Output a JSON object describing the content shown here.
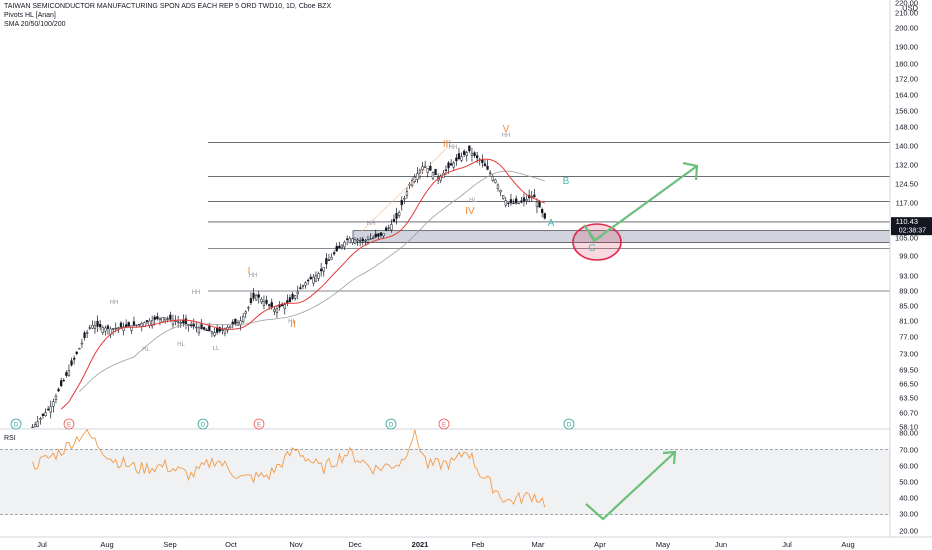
{
  "header": {
    "title": "TAIWAN SEMICONDUCTOR MANUFACTURING SPON ADS EACH REP 5 ORD TWD10, 1D, Cboe BZX",
    "indicator1": "Pivots HL [Anan]",
    "indicator2": "SMA 20/50/100/200"
  },
  "rsi_label": "RSI",
  "price_axis": {
    "currency": "USD",
    "ticks": [
      "220.00",
      "210.00",
      "200.00",
      "190.00",
      "180.00",
      "172.00",
      "164.00",
      "156.00",
      "148.00",
      "140.00",
      "132.00",
      "124.50",
      "117.00",
      "105.00",
      "99.00",
      "93.00",
      "89.00",
      "85.00",
      "81.00",
      "77.00",
      "73.00",
      "69.50",
      "66.50",
      "63.50",
      "60.70",
      "58.10"
    ],
    "last_price": "110.43",
    "countdown": "02:38:37"
  },
  "rsi_axis": {
    "ticks": [
      "80.00",
      "70.00",
      "60.00",
      "50.00",
      "40.00",
      "30.00",
      "20.00"
    ]
  },
  "time_axis": {
    "labels": [
      "Jul",
      "Aug",
      "Sep",
      "Oct",
      "Nov",
      "Dec",
      "2021",
      "Feb",
      "Mar",
      "Apr",
      "May",
      "Jun",
      "Jul",
      "Aug"
    ]
  },
  "annotations": {
    "waves": [
      "I",
      "II",
      "III",
      "IV",
      "V",
      "A",
      "B",
      "C"
    ],
    "pivots": [
      "HH",
      "HL",
      "HL",
      "HH",
      "LL",
      "HH",
      "HL",
      "HH",
      "HH",
      "HL",
      "HH"
    ],
    "events": [
      "D",
      "E",
      "D",
      "E",
      "D",
      "E",
      "D"
    ]
  },
  "colors": {
    "sma_fast": "#e53935",
    "sma_slow": "#9e9e9e",
    "candle": "#131722",
    "rsi": "#f29b4a",
    "arrow": "#6cbf7a",
    "circle": "#e0284f",
    "wave": "#f08a3c",
    "abc": "#4db6ac",
    "dividend": "#26a69a",
    "earnings": "#ef5350"
  },
  "chart_data": {
    "type": "candlestick",
    "title": "TAIWAN SEMICONDUCTOR MANUFACTURING SPON ADS EACH REP 5 ORD TWD10, 1D, Cboe BZX",
    "ylabel": "USD",
    "ylim": [
      58.1,
      220
    ],
    "x_labels": [
      "Jul",
      "Aug",
      "Sep",
      "Oct",
      "Nov",
      "Dec",
      "2021",
      "Feb",
      "Mar",
      "Apr",
      "May",
      "Jun",
      "Jul",
      "Aug"
    ],
    "close_path": [
      [
        "2020-06-26",
        58
      ],
      [
        "2020-07-06",
        62
      ],
      [
        "2020-07-16",
        70
      ],
      [
        "2020-07-27",
        80
      ],
      [
        "2020-08-06",
        79
      ],
      [
        "2020-08-20",
        80
      ],
      [
        "2020-09-03",
        82
      ],
      [
        "2020-09-17",
        80
      ],
      [
        "2020-10-01",
        78
      ],
      [
        "2020-10-14",
        81
      ],
      [
        "2020-10-22",
        88
      ],
      [
        "2020-11-01",
        84
      ],
      [
        "2020-11-09",
        86
      ],
      [
        "2020-11-17",
        91
      ],
      [
        "2020-11-25",
        94
      ],
      [
        "2020-12-03",
        100
      ],
      [
        "2020-12-10",
        105
      ],
      [
        "2020-12-18",
        104
      ],
      [
        "2020-12-28",
        106
      ],
      [
        "2021-01-05",
        112
      ],
      [
        "2021-01-12",
        125
      ],
      [
        "2021-01-19",
        132
      ],
      [
        "2021-01-27",
        127
      ],
      [
        "2021-02-04",
        133
      ],
      [
        "2021-02-12",
        138
      ],
      [
        "2021-02-19",
        133
      ],
      [
        "2021-02-26",
        126
      ],
      [
        "2021-03-04",
        117
      ],
      [
        "2021-03-11",
        117
      ],
      [
        "2021-03-18",
        120
      ],
      [
        "2021-03-25",
        110.43
      ]
    ],
    "horizontal_levels": [
      141.5,
      127.5,
      117.5,
      110.5,
      101.5,
      89
    ],
    "support_zone": [
      103.5,
      107.5
    ],
    "rsi": {
      "name": "RSI",
      "ylim": [
        20,
        80
      ],
      "bands": [
        30,
        70
      ],
      "path": [
        [
          "2020-06-26",
          60
        ],
        [
          "2020-07-10",
          68
        ],
        [
          "2020-07-24",
          81
        ],
        [
          "2020-08-07",
          64
        ],
        [
          "2020-08-21",
          58
        ],
        [
          "2020-09-04",
          60
        ],
        [
          "2020-09-18",
          54
        ],
        [
          "2020-10-01",
          64
        ],
        [
          "2020-10-15",
          52
        ],
        [
          "2020-10-29",
          54
        ],
        [
          "2020-11-12",
          70
        ],
        [
          "2020-11-26",
          58
        ],
        [
          "2020-12-10",
          68
        ],
        [
          "2020-12-24",
          58
        ],
        [
          "2021-01-07",
          62
        ],
        [
          "2021-01-14",
          80
        ],
        [
          "2021-01-21",
          60
        ],
        [
          "2021-02-04",
          62
        ],
        [
          "2021-02-11",
          70
        ],
        [
          "2021-02-18",
          55
        ],
        [
          "2021-03-04",
          38
        ],
        [
          "2021-03-18",
          42
        ],
        [
          "2021-03-25",
          37
        ]
      ]
    }
  }
}
